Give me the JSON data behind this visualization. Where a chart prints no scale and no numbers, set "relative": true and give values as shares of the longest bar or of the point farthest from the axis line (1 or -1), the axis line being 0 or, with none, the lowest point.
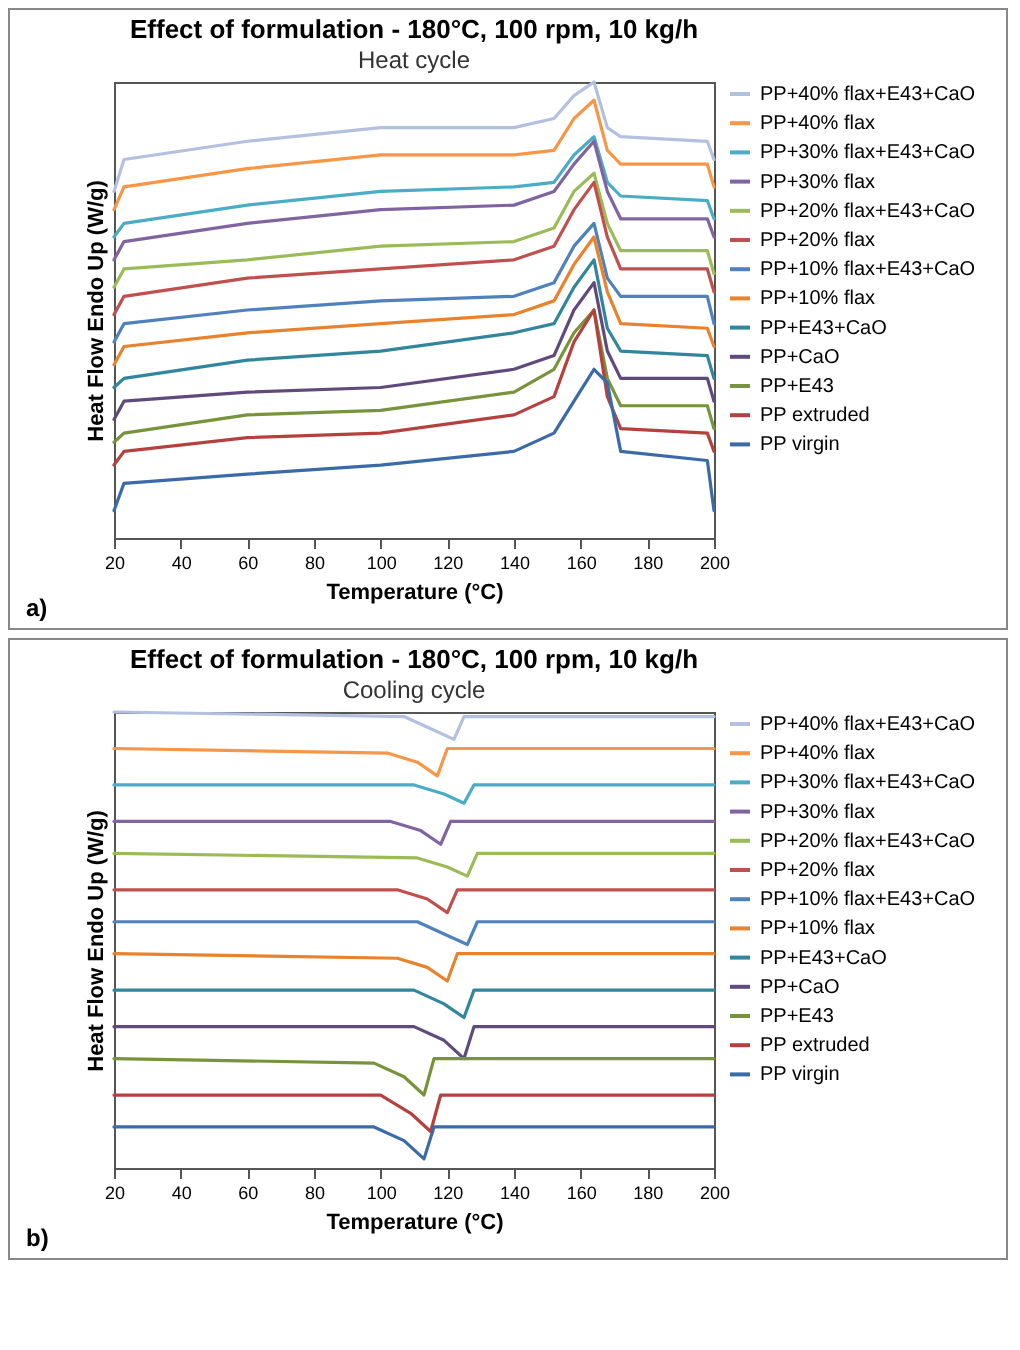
{
  "chart_data": [
    {
      "type": "line",
      "title": "Effect of formulation - 180°C, 100 rpm, 10 kg/h",
      "subtitle": "Heat cycle",
      "xlabel": "Temperature (°C)",
      "ylabel": "Heat Flow Endo Up (W/g)",
      "relative": true,
      "legend": "right",
      "xlim": [
        20,
        200
      ],
      "xticks": [
        20,
        40,
        60,
        80,
        100,
        120,
        140,
        160,
        180,
        200
      ],
      "annotations": [
        "a)"
      ],
      "x": [
        20,
        23,
        60,
        100,
        140,
        152,
        158,
        164,
        168,
        172,
        198,
        200
      ],
      "series": [
        {
          "name": "PP+40% flax+E43+CaO",
          "color": "#b3c0e0",
          "values": [
            0.76,
            0.83,
            0.87,
            0.9,
            0.9,
            0.92,
            0.97,
            1,
            0.9,
            0.88,
            0.87,
            0.83
          ]
        },
        {
          "name": "PP+40% flax",
          "color": "#f79646",
          "values": [
            0.72,
            0.77,
            0.81,
            0.84,
            0.84,
            0.85,
            0.92,
            0.96,
            0.85,
            0.82,
            0.82,
            0.77
          ]
        },
        {
          "name": "PP+30% flax+E43+CaO",
          "color": "#4bacc6",
          "values": [
            0.66,
            0.69,
            0.73,
            0.76,
            0.77,
            0.78,
            0.84,
            0.88,
            0.78,
            0.75,
            0.74,
            0.7
          ]
        },
        {
          "name": "PP+30% flax",
          "color": "#8064a2",
          "values": [
            0.61,
            0.65,
            0.69,
            0.72,
            0.73,
            0.76,
            0.82,
            0.87,
            0.76,
            0.7,
            0.7,
            0.66
          ]
        },
        {
          "name": "PP+20% flax+E43+CaO",
          "color": "#9bbb59",
          "values": [
            0.55,
            0.59,
            0.61,
            0.64,
            0.65,
            0.68,
            0.76,
            0.8,
            0.69,
            0.63,
            0.63,
            0.58
          ]
        },
        {
          "name": "PP+20% flax",
          "color": "#c0504d",
          "values": [
            0.49,
            0.53,
            0.57,
            0.59,
            0.61,
            0.64,
            0.72,
            0.78,
            0.66,
            0.59,
            0.59,
            0.54
          ]
        },
        {
          "name": "PP+10% flax+E43+CaO",
          "color": "#4f81bd",
          "values": [
            0.43,
            0.47,
            0.5,
            0.52,
            0.53,
            0.56,
            0.64,
            0.69,
            0.57,
            0.53,
            0.53,
            0.47
          ]
        },
        {
          "name": "PP+10% flax",
          "color": "#e8822c",
          "values": [
            0.38,
            0.42,
            0.45,
            0.47,
            0.49,
            0.52,
            0.6,
            0.66,
            0.54,
            0.47,
            0.46,
            0.42
          ]
        },
        {
          "name": "PP+E43+CaO",
          "color": "#31859c",
          "values": [
            0.33,
            0.35,
            0.39,
            0.41,
            0.45,
            0.47,
            0.55,
            0.61,
            0.46,
            0.41,
            0.4,
            0.35
          ]
        },
        {
          "name": "PP+CaO",
          "color": "#604a7b",
          "values": [
            0.26,
            0.3,
            0.32,
            0.33,
            0.37,
            0.4,
            0.5,
            0.56,
            0.41,
            0.35,
            0.35,
            0.3
          ]
        },
        {
          "name": "PP+E43",
          "color": "#77933c",
          "values": [
            0.21,
            0.23,
            0.27,
            0.28,
            0.32,
            0.37,
            0.45,
            0.5,
            0.35,
            0.29,
            0.29,
            0.24
          ]
        },
        {
          "name": "PP extruded",
          "color": "#b4413e",
          "values": [
            0.16,
            0.19,
            0.22,
            0.23,
            0.27,
            0.31,
            0.43,
            0.5,
            0.31,
            0.24,
            0.23,
            0.19
          ]
        },
        {
          "name": "PP virgin",
          "color": "#3a6aa8",
          "values": [
            0.06,
            0.12,
            0.14,
            0.16,
            0.19,
            0.23,
            0.3,
            0.37,
            0.34,
            0.19,
            0.17,
            0.06
          ]
        }
      ]
    },
    {
      "type": "line",
      "title": "Effect of formulation - 180°C, 100 rpm, 10 kg/h",
      "subtitle": "Cooling cycle",
      "xlabel": "Temperature (°C)",
      "ylabel": "Heat Flow Endo Up (W/g)",
      "relative": true,
      "legend": "right",
      "xlim": [
        20,
        200
      ],
      "xticks": [
        20,
        40,
        60,
        80,
        100,
        120,
        140,
        160,
        180,
        200
      ],
      "annotations": [
        "b)"
      ],
      "series": [
        {
          "name": "PP+40% flax+E43+CaO",
          "color": "#b3c0e0",
          "x": [
            20,
            107,
            116,
            122,
            125,
            200
          ],
          "values": [
            1,
            0.99,
            0.96,
            0.94,
            0.99,
            0.99
          ]
        },
        {
          "name": "PP+40% flax",
          "color": "#f79646",
          "x": [
            20,
            102,
            111,
            117,
            120,
            200
          ],
          "values": [
            0.92,
            0.91,
            0.89,
            0.86,
            0.92,
            0.92
          ]
        },
        {
          "name": "PP+30% flax+E43+CaO",
          "color": "#4bacc6",
          "x": [
            20,
            110,
            119,
            125,
            128,
            200
          ],
          "values": [
            0.84,
            0.84,
            0.82,
            0.8,
            0.84,
            0.84
          ]
        },
        {
          "name": "PP+30% flax",
          "color": "#8064a2",
          "x": [
            20,
            103,
            112,
            118,
            121,
            200
          ],
          "values": [
            0.76,
            0.76,
            0.74,
            0.71,
            0.76,
            0.76
          ]
        },
        {
          "name": "PP+20% flax+E43+CaO",
          "color": "#9bbb59",
          "x": [
            20,
            111,
            120,
            126,
            129,
            200
          ],
          "values": [
            0.69,
            0.68,
            0.66,
            0.64,
            0.69,
            0.69
          ]
        },
        {
          "name": "PP+20% flax",
          "color": "#c0504d",
          "x": [
            20,
            105,
            114,
            120,
            123,
            200
          ],
          "values": [
            0.61,
            0.61,
            0.59,
            0.56,
            0.61,
            0.61
          ]
        },
        {
          "name": "PP+10% flax+E43+CaO",
          "color": "#4f81bd",
          "x": [
            20,
            111,
            120,
            126,
            129,
            200
          ],
          "values": [
            0.54,
            0.54,
            0.51,
            0.49,
            0.54,
            0.54
          ]
        },
        {
          "name": "PP+10% flax",
          "color": "#e8822c",
          "x": [
            20,
            105,
            114,
            120,
            123,
            200
          ],
          "values": [
            0.47,
            0.46,
            0.44,
            0.41,
            0.47,
            0.47
          ]
        },
        {
          "name": "PP+E43+CaO",
          "color": "#31859c",
          "x": [
            20,
            110,
            119,
            125,
            128,
            200
          ],
          "values": [
            0.39,
            0.39,
            0.36,
            0.33,
            0.39,
            0.39
          ]
        },
        {
          "name": "PP+CaO",
          "color": "#604a7b",
          "x": [
            20,
            110,
            119,
            125,
            128,
            200
          ],
          "values": [
            0.31,
            0.31,
            0.28,
            0.24,
            0.31,
            0.31
          ]
        },
        {
          "name": "PP+E43",
          "color": "#77933c",
          "x": [
            20,
            98,
            107,
            113,
            116,
            200
          ],
          "values": [
            0.24,
            0.23,
            0.2,
            0.16,
            0.24,
            0.24
          ]
        },
        {
          "name": "PP extruded",
          "color": "#b4413e",
          "x": [
            20,
            100,
            109,
            115,
            118,
            200
          ],
          "values": [
            0.16,
            0.16,
            0.12,
            0.08,
            0.16,
            0.16
          ]
        },
        {
          "name": "PP virgin",
          "color": "#3a6aa8",
          "x": [
            20,
            98,
            107,
            113,
            116,
            200
          ],
          "values": [
            0.09,
            0.09,
            0.06,
            0.02,
            0.09,
            0.09
          ]
        }
      ]
    }
  ]
}
